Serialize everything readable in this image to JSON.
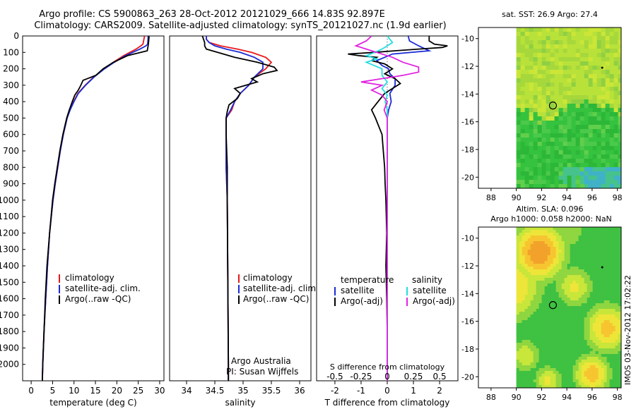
{
  "header": {
    "line1": "Argo profile: CS 5900863_263 28-Oct-2012 20121029_666 14.83S 92.897E",
    "line2": "Climatology: CARS2009. Satellite-adjusted climatology: synTS_20121027.nc (1.9d earlier)"
  },
  "side": {
    "stamp": "IMOS 03-Nov-2012 17:02:22"
  },
  "colors": {
    "climatology": "#e8191b",
    "satellite": "#1b2bd6",
    "argo": "#000000",
    "sat_salinity": "#22dde0",
    "argo_salinity": "#e023e0"
  },
  "chart_data": [
    {
      "type": "line",
      "id": "temperature",
      "xlabel": "temperature (deg C)",
      "ylabel": "",
      "xlim": [
        -2,
        31
      ],
      "ylim": [
        2100,
        0
      ],
      "xticks": [
        0,
        5,
        10,
        15,
        20,
        25,
        30
      ],
      "yticks": [
        0,
        100,
        200,
        300,
        400,
        500,
        600,
        700,
        800,
        900,
        1000,
        1100,
        1200,
        1300,
        1400,
        1500,
        1600,
        1700,
        1800,
        1900,
        2000
      ],
      "legend": [
        "climatology",
        "satellite-adj. clim.",
        "Argo(..raw -QC)"
      ],
      "series": [
        {
          "name": "climatology",
          "color": "#e8191b",
          "depth": [
            0,
            10,
            50,
            60,
            80,
            120,
            160,
            200,
            250,
            300,
            350,
            400,
            450,
            500,
            600,
            700,
            800,
            900,
            1000,
            1200,
            1400,
            1600,
            1800,
            2000,
            2100
          ],
          "values": [
            26.5,
            26.4,
            26.1,
            25.6,
            24.5,
            21.6,
            19.2,
            17.0,
            14.6,
            12.6,
            10.9,
            9.9,
            9.0,
            8.4,
            7.5,
            6.8,
            6.2,
            5.6,
            5.1,
            4.3,
            3.8,
            3.4,
            3.0,
            2.7,
            2.6
          ]
        },
        {
          "name": "satellite-adj. clim.",
          "color": "#1b2bd6",
          "depth": [
            0,
            10,
            50,
            60,
            80,
            120,
            160,
            200,
            250,
            300,
            350,
            400,
            450,
            500,
            600,
            700,
            800,
            900,
            1000,
            1200,
            1400,
            1600,
            1800,
            2000,
            2100
          ],
          "values": [
            27.3,
            27.3,
            27.2,
            26.8,
            25.4,
            22.0,
            19.4,
            17.1,
            14.7,
            12.7,
            11.0,
            10.0,
            9.1,
            8.4,
            7.5,
            6.8,
            6.2,
            5.6,
            5.1,
            4.3,
            3.8,
            3.4,
            3.0,
            2.7,
            2.6
          ]
        },
        {
          "name": "Argo(..raw -QC)",
          "color": "#000000",
          "depth": [
            0,
            10,
            40,
            60,
            90,
            120,
            160,
            200,
            240,
            270,
            300,
            330,
            360,
            400,
            450,
            500,
            600,
            700,
            800,
            900,
            1000,
            1200,
            1400,
            1600,
            1800,
            2000,
            2100
          ],
          "values": [
            27.5,
            27.5,
            27.4,
            27.3,
            27.1,
            22.5,
            19.2,
            16.8,
            15.1,
            12.1,
            11.6,
            11.0,
            10.2,
            9.6,
            8.9,
            8.3,
            7.4,
            6.7,
            6.1,
            5.5,
            5.0,
            4.3,
            3.7,
            3.3,
            3.0,
            2.7,
            2.6
          ]
        }
      ]
    },
    {
      "type": "line",
      "id": "salinity",
      "xlabel": "salinity",
      "ylabel": "",
      "xlim": [
        33.7,
        36.2
      ],
      "ylim": [
        2100,
        0
      ],
      "xticks": [
        34,
        34.5,
        35,
        35.5,
        36
      ],
      "legend": [
        "climatology",
        "satellite-adj. clim.",
        "Argo(..raw -QC)"
      ],
      "annotation": [
        "Argo Australia",
        "PI: Susan Wijffels"
      ],
      "series": [
        {
          "name": "climatology",
          "color": "#e8191b",
          "depth": [
            0,
            20,
            40,
            60,
            80,
            100,
            130,
            160,
            200,
            250,
            300,
            350,
            400,
            450,
            500,
            600,
            800,
            1000,
            1500,
            2000,
            2100
          ],
          "values": [
            34.35,
            34.35,
            34.4,
            34.6,
            34.9,
            35.15,
            35.4,
            35.5,
            35.4,
            35.2,
            35.1,
            34.95,
            34.85,
            34.8,
            34.7,
            34.7,
            34.7,
            34.72,
            34.73,
            34.74,
            34.74
          ]
        },
        {
          "name": "satellite-adj. clim.",
          "color": "#1b2bd6",
          "depth": [
            0,
            20,
            40,
            60,
            80,
            100,
            130,
            160,
            200,
            250,
            300,
            350,
            400,
            450,
            500,
            600,
            800,
            1000,
            1500,
            2000,
            2100
          ],
          "values": [
            34.35,
            34.35,
            34.4,
            34.5,
            34.7,
            34.95,
            35.2,
            35.35,
            35.35,
            35.2,
            35.1,
            34.95,
            34.85,
            34.78,
            34.7,
            34.7,
            34.7,
            34.72,
            34.73,
            34.74,
            34.74
          ]
        },
        {
          "name": "Argo(..raw -QC)",
          "color": "#000000",
          "depth": [
            0,
            20,
            40,
            60,
            80,
            100,
            130,
            160,
            190,
            210,
            230,
            260,
            280,
            300,
            320,
            350,
            380,
            420,
            460,
            500,
            600,
            800,
            1000,
            1500,
            2000,
            2100
          ],
          "values": [
            34.28,
            34.3,
            34.32,
            34.32,
            34.35,
            34.55,
            34.85,
            35.25,
            35.55,
            35.6,
            35.35,
            35.15,
            35.25,
            35.05,
            34.85,
            34.95,
            34.9,
            34.75,
            34.72,
            34.7,
            34.7,
            34.72,
            34.72,
            34.73,
            34.74,
            34.74
          ]
        }
      ]
    },
    {
      "type": "line",
      "id": "difference",
      "xlabel": "T difference from climatology",
      "top_axis_label": "S difference from climatology",
      "xlim": [
        -2.7,
        2.7
      ],
      "ylim": [
        2100,
        0
      ],
      "xticks": [
        -2,
        -1,
        0,
        1,
        2
      ],
      "top_ticks": [
        "-0.5",
        "-0.25",
        "0",
        "0.25",
        "0.5"
      ],
      "legend_headers": [
        "temperature",
        "salinity"
      ],
      "legend": [
        "satellite",
        "Argo(-adj)",
        "satellite",
        "Argo(-adj)"
      ],
      "series": [
        {
          "name": "satellite",
          "quantity": "temperature",
          "color": "#1b2bd6",
          "depth": [
            0,
            30,
            60,
            90,
            110,
            130,
            150,
            180,
            200,
            230,
            260,
            300,
            350,
            400,
            450,
            500,
            600,
            800,
            1000,
            1500,
            2000,
            2100
          ],
          "values": [
            0.8,
            0.85,
            1.2,
            1.6,
            0.2,
            -0.1,
            -0.4,
            -0.2,
            0.05,
            0.1,
            0.3,
            0.3,
            0.1,
            0.15,
            0.05,
            0.0,
            0.0,
            0.0,
            0.0,
            0.0,
            0.0,
            0.0
          ]
        },
        {
          "name": "Argo(-adj)",
          "quantity": "temperature",
          "color": "#000000",
          "depth": [
            0,
            30,
            50,
            60,
            70,
            80,
            90,
            100,
            110,
            120,
            130,
            150,
            170,
            200,
            230,
            260,
            290,
            320,
            350,
            400,
            450,
            500,
            600,
            700,
            800,
            900,
            1000,
            1200,
            1400,
            1600,
            1800,
            2000,
            2100
          ],
          "values": [
            1.6,
            1.6,
            1.8,
            2.3,
            2.1,
            1.2,
            0.3,
            -0.5,
            -1.5,
            -1.1,
            -0.4,
            -0.6,
            -0.1,
            0.2,
            -0.1,
            0.3,
            0.5,
            0.2,
            -0.1,
            -0.35,
            -0.6,
            -0.45,
            -0.2,
            -0.15,
            -0.1,
            -0.08,
            -0.05,
            -0.02,
            -0.05,
            -0.02,
            0.0,
            0.0,
            0.0
          ]
        },
        {
          "name": "satellite",
          "quantity": "salinity",
          "color": "#22dde0",
          "depth": [
            0,
            40,
            80,
            100,
            120,
            140,
            160,
            200,
            240,
            280,
            320,
            360,
            400,
            450,
            500,
            600,
            800,
            1000,
            1500,
            2000,
            2100
          ],
          "values": [
            0.0,
            0.05,
            -0.05,
            -0.12,
            -0.2,
            -0.1,
            -0.2,
            -0.05,
            -0.05,
            0.0,
            -0.05,
            0.0,
            -0.02,
            0.0,
            0.0,
            0.0,
            0.0,
            0.0,
            0.0,
            0.0,
            0.0
          ]
        },
        {
          "name": "Argo(-adj)",
          "quantity": "salinity",
          "color": "#e023e0",
          "depth": [
            0,
            30,
            60,
            80,
            100,
            130,
            160,
            190,
            220,
            240,
            260,
            280,
            300,
            330,
            360,
            400,
            450,
            500,
            600,
            800,
            1000,
            1500,
            2000,
            2100
          ],
          "values": [
            -0.15,
            -0.2,
            -0.3,
            -0.2,
            -0.1,
            0.05,
            0.15,
            0.3,
            0.3,
            0.15,
            -0.05,
            -0.25,
            -0.05,
            -0.15,
            -0.05,
            0.0,
            -0.03,
            0.0,
            0.0,
            0.0,
            0.0,
            0.0,
            0.0,
            0.0
          ]
        }
      ]
    },
    {
      "type": "heatmap",
      "id": "sst_map",
      "title": "sat. SST: 26.9 Argo: 27.4",
      "xlim": [
        87,
        98.3
      ],
      "ylim": [
        -20.8,
        -9.2
      ],
      "xticks": [
        88,
        90,
        92,
        94,
        96,
        98
      ],
      "yticks": [
        -10,
        -12,
        -14,
        -16,
        -18,
        -20
      ],
      "argo_position": {
        "lon": 92.897,
        "lat": -14.83
      },
      "secondary_marker": {
        "lon": 96.8,
        "lat": -12.1
      }
    },
    {
      "type": "heatmap",
      "id": "sla_map",
      "title": "Altim. SLA: 0.096",
      "subtitle": "Argo h1000: 0.058 h2000: NaN",
      "xlim": [
        87,
        98.3
      ],
      "ylim": [
        -20.8,
        -9.2
      ],
      "xticks": [
        88,
        90,
        92,
        94,
        96,
        98
      ],
      "yticks": [
        -10,
        -12,
        -14,
        -16,
        -18,
        -20
      ],
      "argo_position": {
        "lon": 92.897,
        "lat": -14.83
      },
      "secondary_marker": {
        "lon": 96.8,
        "lat": -12.1
      }
    }
  ]
}
